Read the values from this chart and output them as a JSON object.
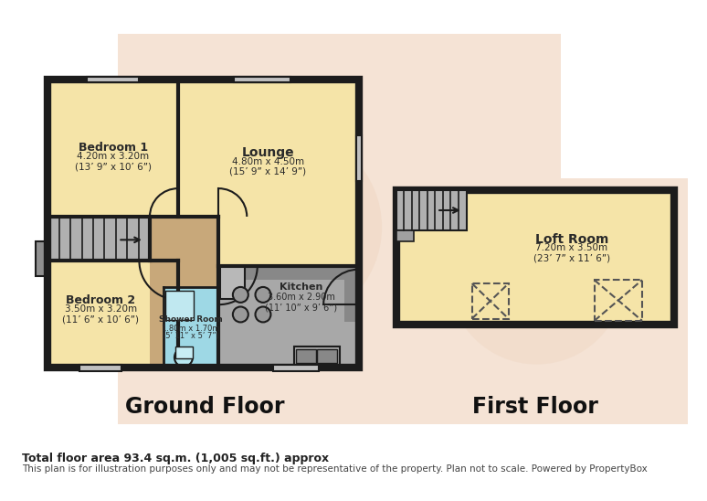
{
  "bg_color": "#ffffff",
  "peach_bg": "#f5e3d5",
  "peach_circle": "#f0d8c5",
  "wall_color": "#1c1c1c",
  "room_yellow": "#f5e4a8",
  "hallway_brown": "#c8a87a",
  "kitchen_gray": "#a8a8a8",
  "shower_blue": "#9ed8e5",
  "stair_gray": "#b0b0b0",
  "window_gray": "#c0c0c0",
  "lw_wall": 5,
  "lw_inner": 3,
  "title": "Ground Floor",
  "title2": "First Floor",
  "footer1": "Total floor area 93.4 sq.m. (1,005 sq.ft.) approx",
  "footer2": "This plan is for illustration purposes only and may not be representative of the property. Plan not to scale. Powered by PropertyBox",
  "bed1_label": "Bedroom 1",
  "bed1_dim": "4.20m x 3.20m",
  "bed1_imp": "(13’ 9” x 10’ 6”)",
  "bed2_label": "Bedroom 2",
  "bed2_dim": "3.50m x 3.20m",
  "bed2_imp": "(11’ 6” x 10’ 6”)",
  "lounge_label": "Lounge",
  "lounge_dim": "4.80m x 4.50m",
  "lounge_imp": "(15’ 9” x 14’ 9”)",
  "kitchen_label": "Kitchen",
  "kitchen_dim": "3.60m x 2.90m",
  "kitchen_imp": "(11’ 10” x 9’ 6”)",
  "shower_label": "Shower Room",
  "shower_dim": "1.80m x 1.70m",
  "shower_imp": "(5’ 11” x 5’ 7”)",
  "loft_label": "Loft Room",
  "loft_dim": "7.20m x 3.50m",
  "loft_imp": "(23’ 7” x 11’ 6”)"
}
